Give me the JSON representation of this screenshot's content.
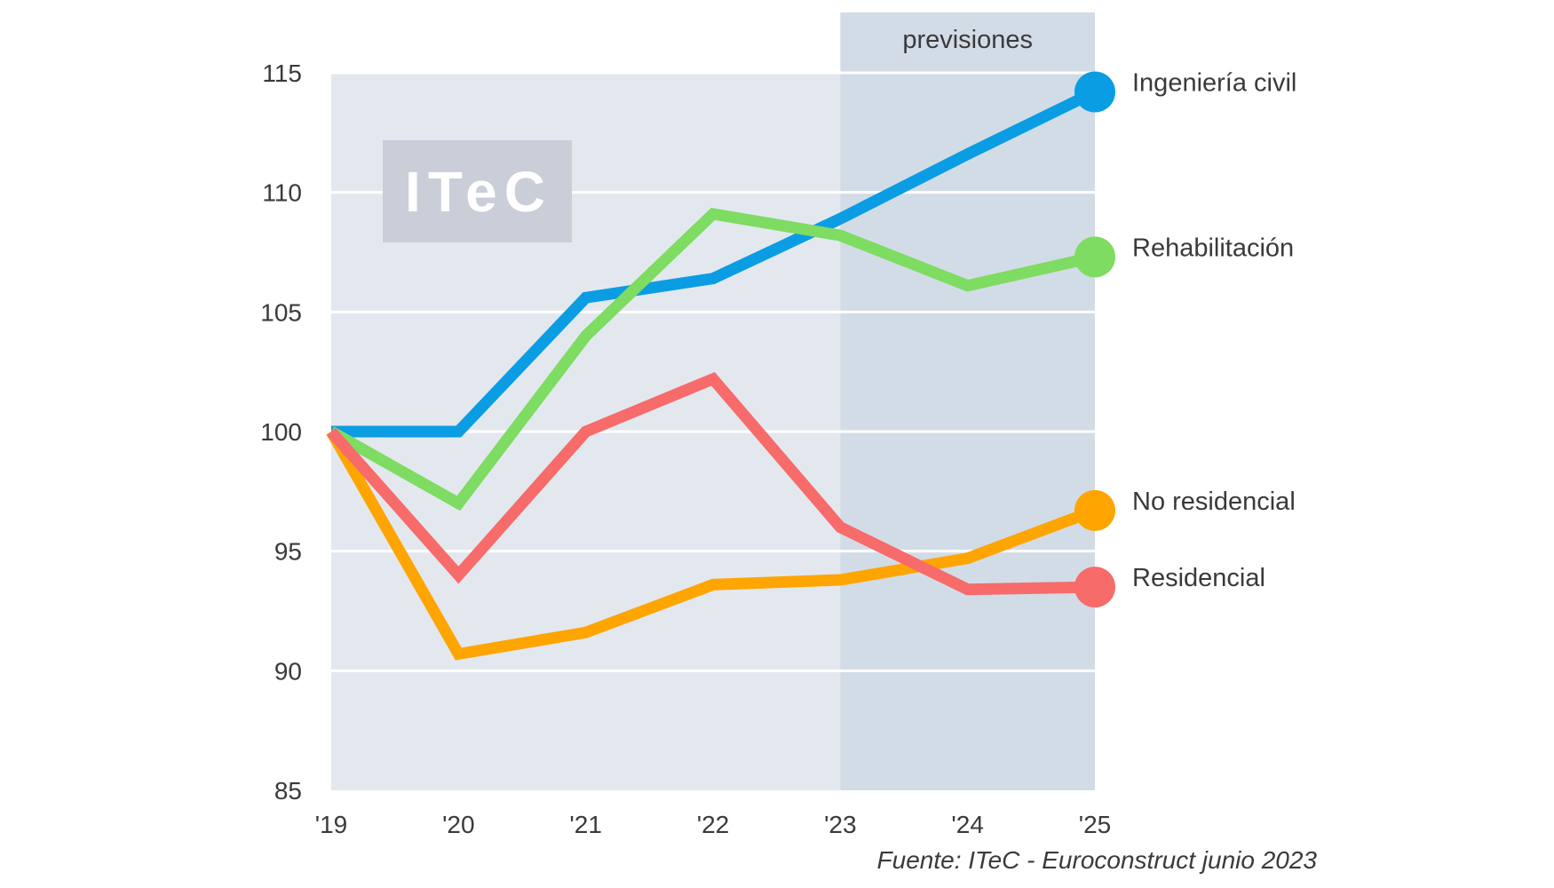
{
  "chart_data": {
    "type": "line",
    "x": [
      "'19",
      "'20",
      "'21",
      "'22",
      "'23",
      "'24",
      "'25"
    ],
    "ylim": [
      85,
      115
    ],
    "yticks": [
      85,
      90,
      95,
      100,
      105,
      110,
      115
    ],
    "grid": true,
    "forecast": {
      "label": "previsiones",
      "from": "'23",
      "to": "'25"
    },
    "series": [
      {
        "name": "Ingeniería civil",
        "color": "#0a9de3",
        "values": [
          100,
          100,
          105.6,
          106.4,
          108.9,
          111.6,
          114.2
        ]
      },
      {
        "name": "Rehabilitación",
        "color": "#7ddc61",
        "values": [
          100,
          97,
          104,
          109.1,
          108.2,
          106.1,
          107.3
        ]
      },
      {
        "name": "No residencial",
        "color": "#fea502",
        "values": [
          100,
          90.7,
          91.6,
          93.6,
          93.8,
          94.7,
          96.7
        ]
      },
      {
        "name": "Residencial",
        "color": "#f76b6b",
        "values": [
          100,
          94,
          100,
          102.2,
          96,
          93.4,
          93.5
        ]
      }
    ]
  },
  "logo": {
    "text": "ITeC"
  },
  "source": "Fuente: ITeC - Euroconstruct junio 2023",
  "colors": {
    "plot_bg": "#e3e8ef",
    "forecast_bg": "#d2dce6",
    "logo_bg": "#c9ced9",
    "grid": "#ffffff"
  }
}
